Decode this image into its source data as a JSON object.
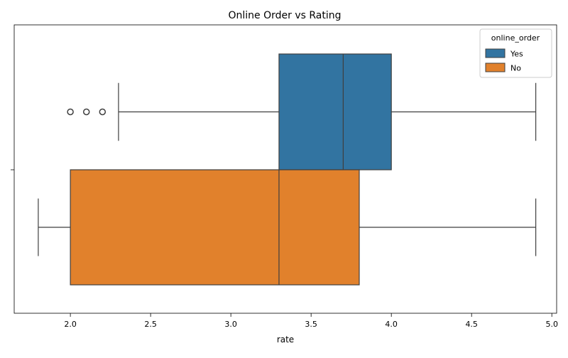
{
  "chart_data": {
    "type": "boxplot",
    "title": "Online Order vs Rating",
    "xlabel": "rate",
    "ylabel": "",
    "xlim": [
      1.65,
      5.03
    ],
    "xticks": [
      2.0,
      2.5,
      3.0,
      3.5,
      4.0,
      4.5,
      5.0
    ],
    "xtick_labels": [
      "2.0",
      "2.5",
      "3.0",
      "3.5",
      "4.0",
      "4.5",
      "5.0"
    ],
    "orientation": "horizontal",
    "legend": {
      "title": "online_order",
      "position": "top-right",
      "entries": [
        "Yes",
        "No"
      ]
    },
    "series": [
      {
        "name": "Yes",
        "color": "#3274a1",
        "whisker_low": 2.3,
        "q1": 3.3,
        "median": 3.7,
        "q3": 4.0,
        "whisker_high": 4.9,
        "outliers": [
          2.0,
          2.1,
          2.2
        ]
      },
      {
        "name": "No",
        "color": "#e1812c",
        "whisker_low": 1.8,
        "q1": 2.0,
        "median": 3.3,
        "q3": 3.8,
        "whisker_high": 4.9,
        "outliers": []
      }
    ],
    "grid": false
  }
}
